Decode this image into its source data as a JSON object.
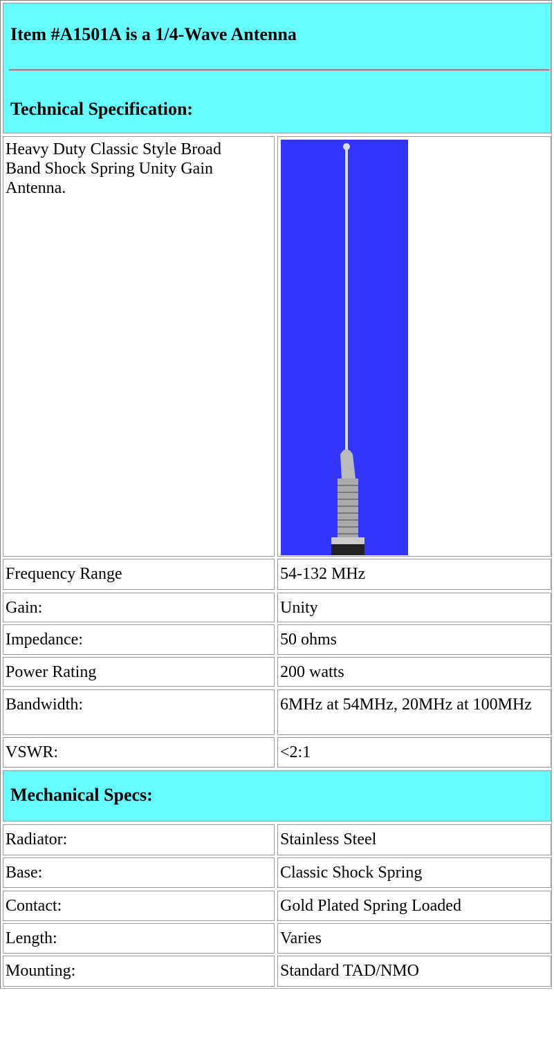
{
  "header": {
    "title": "Item #A1501A is a 1/4-Wave Antenna",
    "subtitle": "Technical Specification:"
  },
  "description": "Heavy Duty Classic Style Broad Band Shock Spring Unity Gain Antenna.",
  "specs": [
    [
      "Frequency Range",
      "54-132 MHz"
    ],
    [
      "Gain:",
      "Unity"
    ],
    [
      "Impedance:",
      "50 ohms"
    ],
    [
      "Power Rating",
      "200 watts"
    ],
    [
      "Bandwidth:",
      "6MHz at 54MHz, 20MHz at 100MHz"
    ],
    [
      "VSWR:",
      "<2:1"
    ]
  ],
  "mechanical": {
    "title": "Mechanical Specs:",
    "rows": [
      [
        "Radiator:",
        "Stainless Steel"
      ],
      [
        "Base:",
        "Classic Shock Spring"
      ],
      [
        "Contact:",
        "Gold Plated Spring Loaded"
      ],
      [
        "Length:",
        "Varies"
      ],
      [
        "Mounting:",
        "Standard TAD/NMO"
      ]
    ]
  }
}
